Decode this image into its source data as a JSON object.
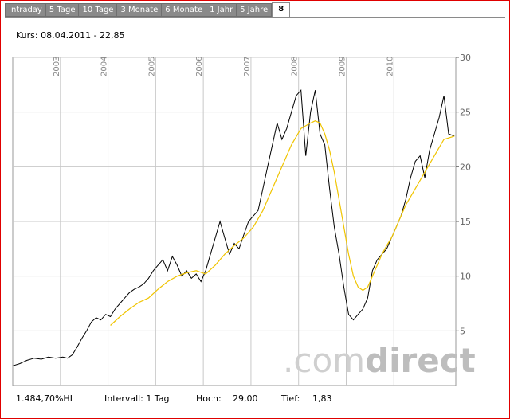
{
  "tabs": [
    {
      "label": "Intraday",
      "active": false
    },
    {
      "label": "5 Tage",
      "active": false
    },
    {
      "label": "10 Tage",
      "active": false
    },
    {
      "label": "3 Monate",
      "active": false
    },
    {
      "label": "6 Monate",
      "active": false
    },
    {
      "label": "1 Jahr",
      "active": false
    },
    {
      "label": "5 Jahre",
      "active": false
    },
    {
      "label": "8",
      "active": true
    }
  ],
  "kurs_label": "Kurs: 08.04.2011 - 22,85",
  "footer": {
    "change": "1.484,70%HL",
    "interval": "Intervall: 1 Tag",
    "high_label": "Hoch:",
    "high_value": "29,00",
    "low_label": "Tief:",
    "low_value": "1,83"
  },
  "watermark": {
    "dot_com": ".com",
    "direct": "direct"
  },
  "colors": {
    "price": "#000000",
    "average": "#f0c400",
    "grid": "#c8c8c8",
    "border": "#e00000",
    "tab_bg": "#8a8a8a"
  },
  "chart_data": {
    "type": "line",
    "x_axis_labels": [
      "2003",
      "2004",
      "2005",
      "2006",
      "2007",
      "2008",
      "2009",
      "2010"
    ],
    "y_ticks": [
      5,
      10,
      15,
      20,
      25,
      30
    ],
    "ylim": [
      0,
      30
    ],
    "xlim": [
      2002.0,
      2011.3
    ],
    "y_axis_side": "right",
    "grid": true,
    "series": [
      {
        "key": "price",
        "x": [
          2002.0,
          2002.15,
          2002.3,
          2002.45,
          2002.6,
          2002.75,
          2002.9,
          2003.05,
          2003.15,
          2003.25,
          2003.35,
          2003.45,
          2003.55,
          2003.65,
          2003.75,
          2003.85,
          2003.95,
          2004.05,
          2004.15,
          2004.25,
          2004.35,
          2004.45,
          2004.55,
          2004.65,
          2004.75,
          2004.85,
          2004.95,
          2005.05,
          2005.15,
          2005.25,
          2005.35,
          2005.45,
          2005.55,
          2005.65,
          2005.75,
          2005.85,
          2005.95,
          2006.05,
          2006.15,
          2006.25,
          2006.35,
          2006.45,
          2006.55,
          2006.65,
          2006.75,
          2006.85,
          2006.95,
          2007.05,
          2007.15,
          2007.25,
          2007.35,
          2007.45,
          2007.55,
          2007.65,
          2007.75,
          2007.85,
          2007.95,
          2008.05,
          2008.15,
          2008.25,
          2008.35,
          2008.45,
          2008.55,
          2008.65,
          2008.75,
          2008.85,
          2008.95,
          2009.05,
          2009.15,
          2009.25,
          2009.35,
          2009.45,
          2009.55,
          2009.65,
          2009.75,
          2009.85,
          2009.95,
          2010.05,
          2010.15,
          2010.25,
          2010.35,
          2010.45,
          2010.55,
          2010.65,
          2010.75,
          2010.85,
          2010.95,
          2011.05,
          2011.15,
          2011.27
        ],
        "y": [
          1.8,
          2.0,
          2.3,
          2.5,
          2.4,
          2.6,
          2.5,
          2.6,
          2.5,
          2.8,
          3.5,
          4.3,
          5.0,
          5.8,
          6.2,
          6.0,
          6.5,
          6.3,
          7.0,
          7.5,
          8.0,
          8.5,
          8.8,
          9.0,
          9.3,
          9.8,
          10.5,
          11.0,
          11.5,
          10.5,
          11.8,
          11.0,
          10.0,
          10.5,
          9.8,
          10.2,
          9.5,
          10.5,
          12.0,
          13.5,
          15.0,
          13.5,
          12.0,
          13.0,
          12.5,
          13.8,
          15.0,
          15.5,
          16.0,
          18.0,
          20.0,
          22.0,
          24.0,
          22.5,
          23.5,
          25.0,
          26.5,
          27.0,
          21.0,
          25.0,
          27.0,
          23.0,
          22.0,
          18.0,
          14.5,
          12.0,
          9.0,
          6.5,
          6.0,
          6.5,
          7.0,
          8.0,
          10.5,
          11.5,
          12.0,
          12.5,
          13.5,
          14.5,
          15.5,
          17.0,
          19.0,
          20.5,
          21.0,
          19.0,
          21.5,
          23.0,
          24.5,
          26.5,
          23.0,
          22.8
        ]
      },
      {
        "key": "average",
        "x": [
          2004.05,
          2004.25,
          2004.45,
          2004.65,
          2004.85,
          2005.05,
          2005.25,
          2005.45,
          2005.65,
          2005.85,
          2006.05,
          2006.25,
          2006.45,
          2006.65,
          2006.85,
          2007.05,
          2007.25,
          2007.45,
          2007.65,
          2007.85,
          2008.05,
          2008.25,
          2008.35,
          2008.45,
          2008.55,
          2008.65,
          2008.75,
          2008.85,
          2008.95,
          2009.05,
          2009.15,
          2009.25,
          2009.35,
          2009.45,
          2009.55,
          2009.65,
          2009.75,
          2009.85,
          2009.95,
          2010.05,
          2010.25,
          2010.45,
          2010.65,
          2010.85,
          2011.05,
          2011.27
        ],
        "y": [
          5.5,
          6.3,
          7.0,
          7.6,
          8.0,
          8.8,
          9.5,
          10.0,
          10.3,
          10.5,
          10.2,
          11.0,
          12.0,
          12.8,
          13.5,
          14.5,
          16.0,
          18.0,
          20.0,
          22.0,
          23.5,
          24.0,
          24.2,
          24.0,
          23.0,
          21.5,
          19.5,
          17.0,
          14.5,
          12.0,
          10.0,
          9.0,
          8.7,
          9.0,
          10.0,
          11.0,
          12.0,
          12.8,
          13.5,
          14.5,
          16.5,
          18.0,
          19.5,
          21.0,
          22.5,
          22.8
        ]
      }
    ]
  }
}
